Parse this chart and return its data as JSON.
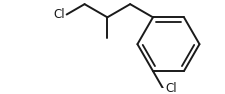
{
  "bg_color": "#ffffff",
  "line_color": "#1a1a1a",
  "line_width": 1.4,
  "figsize": [
    2.26,
    0.94
  ],
  "dpi": 100,
  "cl_top_label": "Cl",
  "cl_left_label": "Cl",
  "font_size": 8.5
}
